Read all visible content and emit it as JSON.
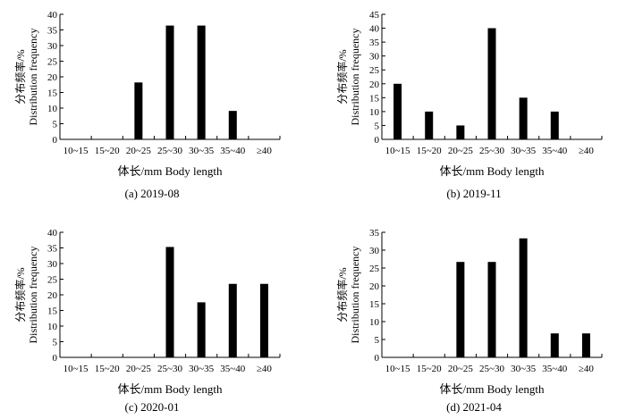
{
  "figure": {
    "ylabel_cn": "分布频率/%",
    "ylabel_en": "Distribution frequency",
    "xlabel": "体长/mm Body length"
  },
  "chart_data": [
    {
      "type": "bar",
      "caption": "(a) 2019-08",
      "categories": [
        "10~15",
        "15~20",
        "20~25",
        "25~30",
        "30~35",
        "35~40",
        "≥40"
      ],
      "values": [
        0,
        0,
        18.2,
        36.4,
        36.4,
        9.1,
        0
      ],
      "ylim": [
        0,
        40
      ],
      "yticks": [
        0,
        5,
        10,
        15,
        20,
        25,
        30,
        35,
        40
      ],
      "xlabel": "体长/mm Body length",
      "ylabel": "分布频率/% Distribution frequency",
      "grid": false
    },
    {
      "type": "bar",
      "caption": "(b) 2019-11",
      "categories": [
        "10~15",
        "15~20",
        "20~25",
        "25~30",
        "30~35",
        "35~40",
        "≥40"
      ],
      "values": [
        20,
        10,
        5,
        40,
        15,
        10,
        0
      ],
      "ylim": [
        0,
        45
      ],
      "yticks": [
        0,
        5,
        10,
        15,
        20,
        25,
        30,
        35,
        40,
        45
      ],
      "xlabel": "体长/mm Body length",
      "ylabel": "分布频率/% Distribution frequency",
      "grid": false
    },
    {
      "type": "bar",
      "caption": "(c) 2020-01",
      "categories": [
        "10~15",
        "15~20",
        "20~25",
        "25~30",
        "30~35",
        "35~40",
        "≥40"
      ],
      "values": [
        0,
        0,
        0,
        35.3,
        17.6,
        23.5,
        23.5
      ],
      "ylim": [
        0,
        40
      ],
      "yticks": [
        0,
        5,
        10,
        15,
        20,
        25,
        30,
        35,
        40
      ],
      "xlabel": "体长/mm Body length",
      "ylabel": "分布频率/% Distribution frequency",
      "grid": false
    },
    {
      "type": "bar",
      "caption": "(d) 2021-04",
      "categories": [
        "10~15",
        "15~20",
        "20~25",
        "25~30",
        "30~35",
        "35~40",
        "≥40"
      ],
      "values": [
        0,
        0,
        26.7,
        26.7,
        33.3,
        6.7,
        6.7
      ],
      "ylim": [
        0,
        35
      ],
      "yticks": [
        0,
        5,
        10,
        15,
        20,
        25,
        30,
        35
      ],
      "xlabel": "体长/mm Body length",
      "ylabel": "分布频率/% Distribution frequency",
      "grid": false
    }
  ]
}
